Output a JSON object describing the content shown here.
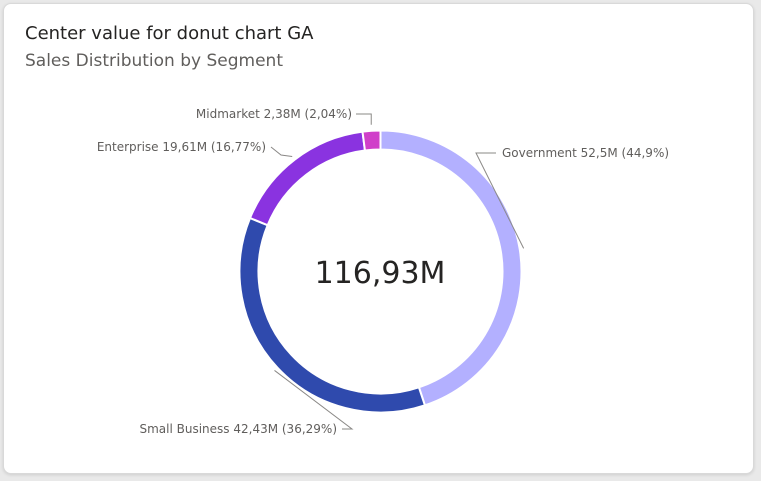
{
  "visual": {
    "title": "Center value for donut chart GA",
    "subtitle": "Sales Distribution by Segment"
  },
  "chart_data": {
    "type": "pie",
    "variant": "donut",
    "center_label": "116,93M",
    "total": 116.93,
    "unit": "M",
    "slices": [
      {
        "name": "Government",
        "value": 52.5,
        "percent": 44.9,
        "color": "#b3b0ff",
        "label": "Government 52,5M (44,9%)"
      },
      {
        "name": "Small Business",
        "value": 42.43,
        "percent": 36.29,
        "color": "#2f4aad",
        "label": "Small Business 42,43M (36,29%)"
      },
      {
        "name": "Enterprise",
        "value": 19.61,
        "percent": 16.77,
        "color": "#8a33e0",
        "label": "Enterprise 19,61M (16,77%)"
      },
      {
        "name": "Midmarket",
        "value": 2.38,
        "percent": 2.04,
        "color": "#d03fc9",
        "label": "Midmarket 2,38M (2,04%)"
      }
    ],
    "start_angle": "top, clockwise",
    "legend": "data labels outside"
  }
}
